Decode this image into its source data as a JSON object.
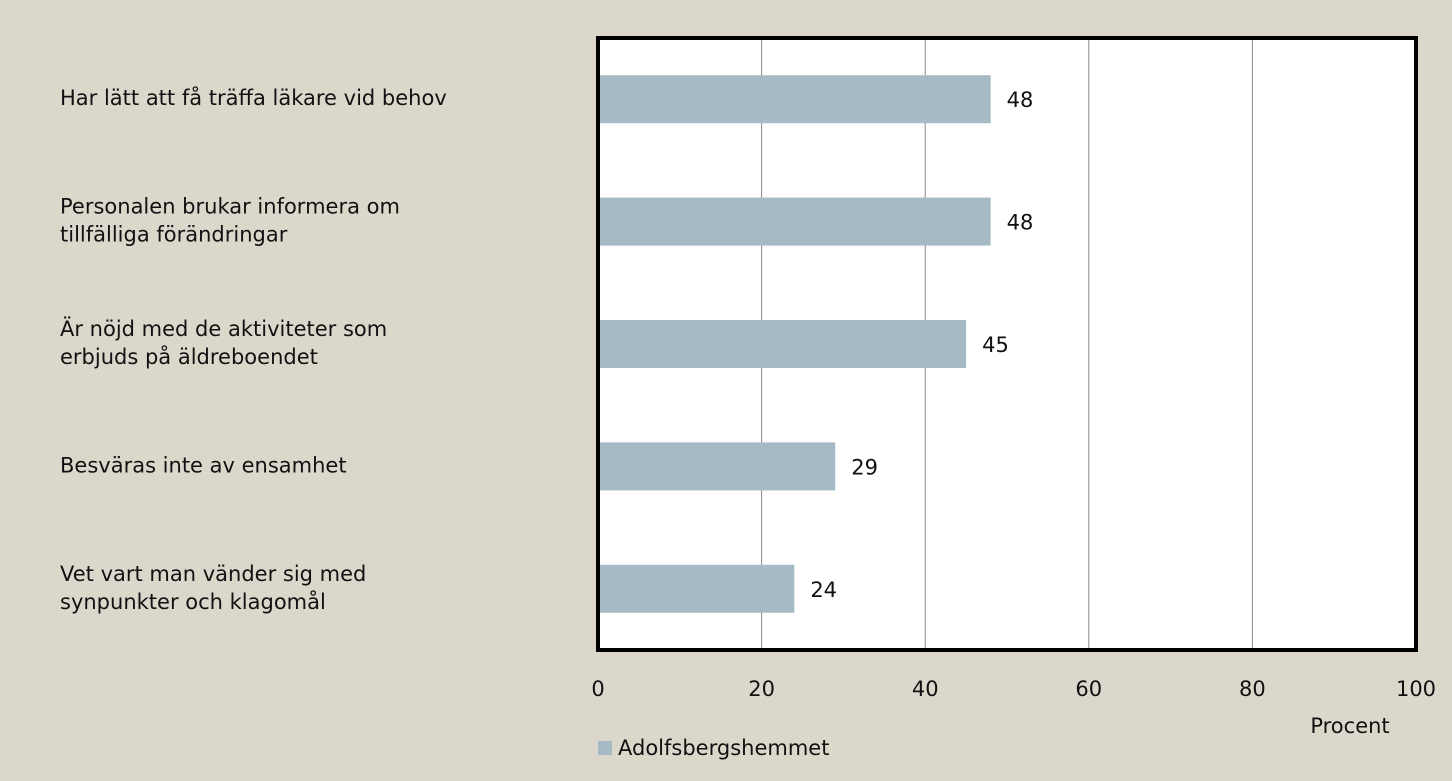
{
  "chart_data": {
    "type": "bar",
    "orientation": "horizontal",
    "categories": [
      "Har lätt att få träffa läkare vid behov",
      "Personalen brukar informera om\ntillfälliga förändringar",
      "Är nöjd med de aktiviteter som\nerbjuds på äldreboendet",
      "Besväras inte av ensamhet",
      "Vet vart man vänder sig med\nsynpunkter och klagomål"
    ],
    "series": [
      {
        "name": "Adolfsbergshemmet",
        "color": "#a6bac5",
        "values": [
          48,
          48,
          45,
          29,
          24
        ]
      }
    ],
    "xlim": [
      0,
      100
    ],
    "xticks": [
      0,
      20,
      40,
      60,
      80,
      100
    ],
    "xlabel": "Procent",
    "grid": true
  }
}
